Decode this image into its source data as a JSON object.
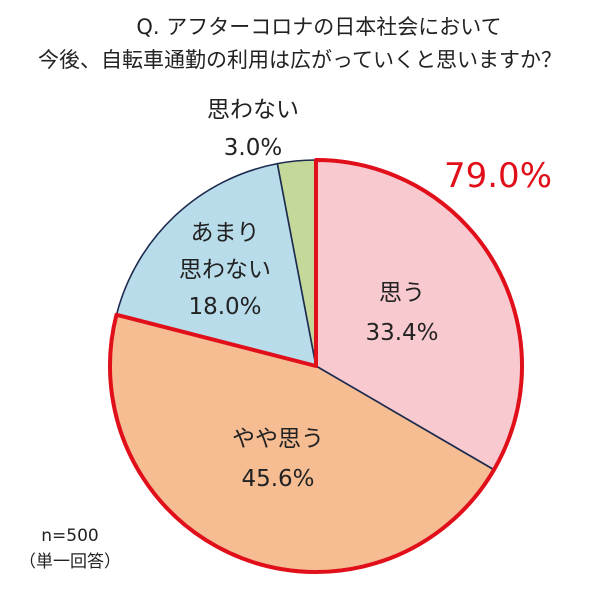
{
  "chart_data": {
    "type": "pie",
    "title": "Q. アフターコロナの日本社会において",
    "subtitle": "今後、自転車通勤の利用は広がっていくと思いますか？",
    "slices": [
      {
        "label": "思う",
        "value": 33.4,
        "value_text": "33.4%",
        "color": "#f8c9cf"
      },
      {
        "label": "やや思う",
        "value": 45.6,
        "value_text": "45.6%",
        "color": "#f6bd93"
      },
      {
        "label": "あまり思わない",
        "label_lines": [
          "あまり",
          "思わない"
        ],
        "value": 18.0,
        "value_text": "18.0%",
        "color": "#b9dcea"
      },
      {
        "label": "思わない",
        "value": 3.0,
        "value_text": "3.0%",
        "color": "#c4d89a"
      }
    ],
    "highlight_group": {
      "members": [
        "思う",
        "やや思う"
      ],
      "value_text": "79.0%",
      "color": "#e10f1a"
    },
    "note": {
      "sample": "n=500",
      "type": "（単一回答）"
    }
  }
}
